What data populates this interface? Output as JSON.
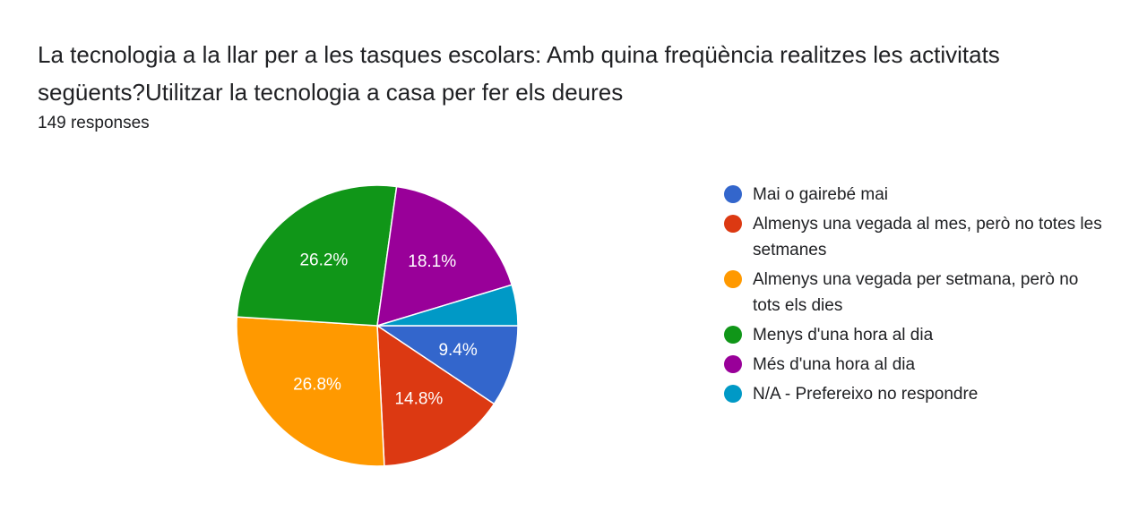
{
  "title": "La tecnologia a la llar per a les tasques escolars: Amb quina freqüència realitzes les activitats següents?Utilitzar la tecnologia a casa per fer els deures",
  "subtitle": "149 responses",
  "chart_data": {
    "type": "pie",
    "title": "La tecnologia a la llar per a les tasques escolars: Amb quina freqüència realitzes les activitats següents?Utilitzar la tecnologia a casa per fer els deures",
    "subtitle": "149 responses",
    "legend_position": "right",
    "slices": [
      {
        "label": "Mai o gairebé mai",
        "value": 9.4,
        "value_label": "9.4%",
        "color": "#3366cc"
      },
      {
        "label": "Almenys una vegada al mes, però no totes les setmanes",
        "value": 14.8,
        "value_label": "14.8%",
        "color": "#dc3912"
      },
      {
        "label": "Almenys una vegada per setmana, però no tots els dies",
        "value": 26.8,
        "value_label": "26.8%",
        "color": "#ff9900"
      },
      {
        "label": "Menys d'una hora al dia",
        "value": 26.2,
        "value_label": "26.2%",
        "color": "#109618"
      },
      {
        "label": "Més d'una hora al dia",
        "value": 18.1,
        "value_label": "18.1%",
        "color": "#990099"
      },
      {
        "label": "N/A - Prefereixo no respondre",
        "value": 4.7,
        "value_label": "",
        "color": "#0099c6"
      }
    ]
  }
}
